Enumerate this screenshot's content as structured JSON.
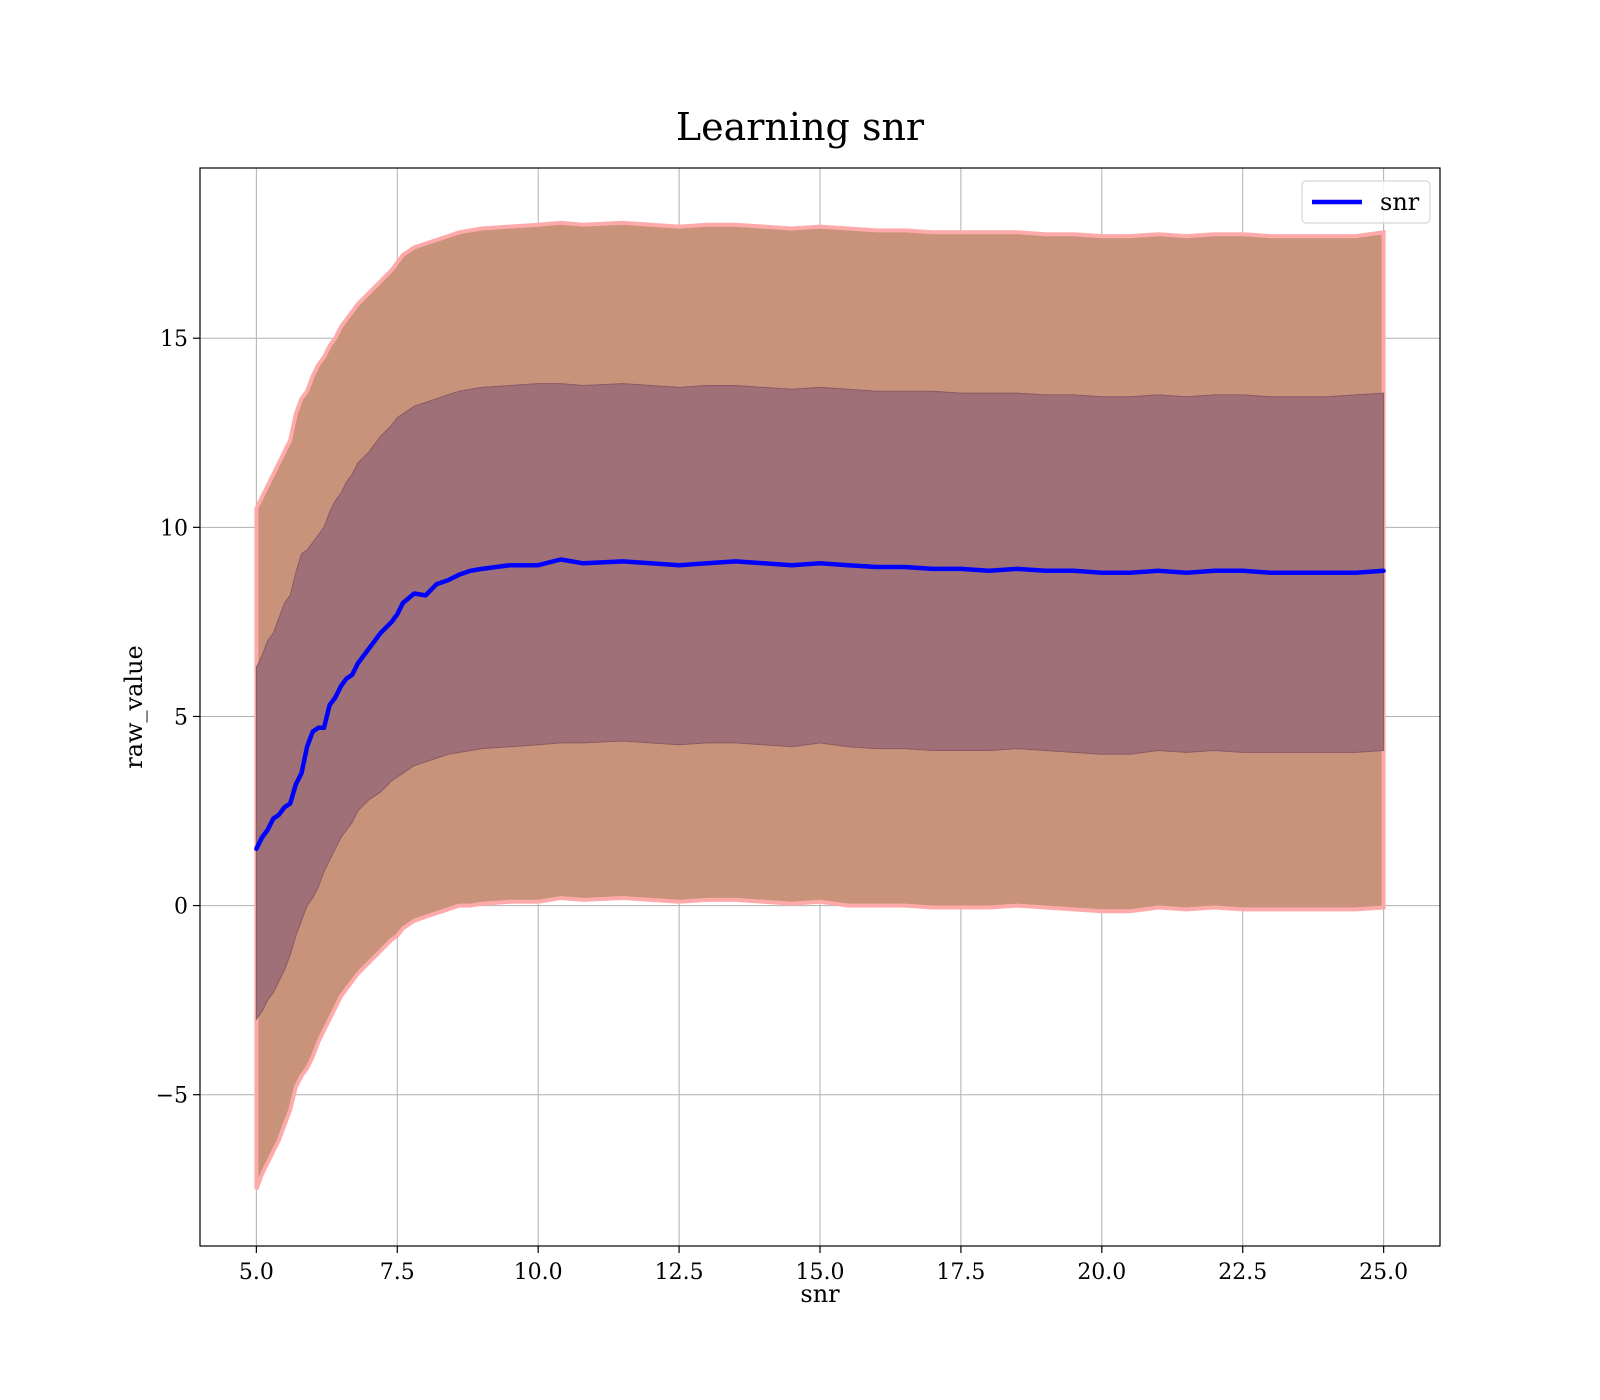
{
  "chart_data": {
    "type": "line",
    "title": "Learning snr",
    "xlabel": "snr",
    "ylabel": "raw_value",
    "xlim": [
      4.0,
      26.0
    ],
    "ylim": [
      -9.0,
      19.5
    ],
    "xticks": [
      5.0,
      7.5,
      10.0,
      12.5,
      15.0,
      17.5,
      20.0,
      22.5,
      25.0
    ],
    "xtick_labels": [
      "5.0",
      "7.5",
      "10.0",
      "12.5",
      "15.0",
      "17.5",
      "20.0",
      "22.5",
      "25.0"
    ],
    "yticks": [
      -5,
      0,
      5,
      10,
      15
    ],
    "ytick_labels": [
      "−5",
      "0",
      "5",
      "10",
      "15"
    ],
    "grid": true,
    "legend": {
      "placement": "top-right",
      "entries": [
        {
          "name": "snr",
          "color": "#0000ff"
        }
      ]
    },
    "colors": {
      "mean_line": "#0000ff",
      "outer_band": "#c8937a",
      "inner_band": "#a07078",
      "outer_edge": "#ffaaaa"
    },
    "series": [
      {
        "name": "snr",
        "x": [
          5.0,
          5.1,
          5.2,
          5.3,
          5.4,
          5.5,
          5.6,
          5.7,
          5.8,
          5.9,
          6.0,
          6.1,
          6.2,
          6.3,
          6.4,
          6.5,
          6.6,
          6.7,
          6.8,
          7.0,
          7.2,
          7.4,
          7.5,
          7.6,
          7.8,
          8.0,
          8.2,
          8.4,
          8.6,
          8.8,
          9.0,
          9.5,
          10.0,
          10.4,
          10.8,
          11.5,
          12.0,
          12.5,
          13.0,
          13.5,
          14.0,
          14.5,
          15.0,
          15.5,
          16.0,
          16.5,
          17.0,
          17.5,
          18.0,
          18.5,
          19.0,
          19.5,
          20.0,
          20.5,
          21.0,
          21.5,
          22.0,
          22.5,
          23.0,
          23.5,
          24.0,
          24.5,
          25.0
        ],
        "mean": [
          1.5,
          1.8,
          2.0,
          2.3,
          2.4,
          2.6,
          2.7,
          3.2,
          3.5,
          4.2,
          4.6,
          4.7,
          4.7,
          5.3,
          5.5,
          5.8,
          6.0,
          6.1,
          6.4,
          6.8,
          7.2,
          7.5,
          7.7,
          8.0,
          8.25,
          8.2,
          8.5,
          8.6,
          8.75,
          8.85,
          8.9,
          9.0,
          9.0,
          9.15,
          9.05,
          9.1,
          9.05,
          9.0,
          9.05,
          9.1,
          9.05,
          9.0,
          9.05,
          9.0,
          8.95,
          8.95,
          8.9,
          8.9,
          8.85,
          8.9,
          8.85,
          8.85,
          8.8,
          8.8,
          8.85,
          8.8,
          8.85,
          8.85,
          8.8,
          8.8,
          8.8,
          8.8,
          8.85
        ],
        "inner_upper": [
          6.3,
          6.6,
          7.0,
          7.2,
          7.6,
          8.0,
          8.2,
          8.8,
          9.3,
          9.4,
          9.6,
          9.8,
          10.0,
          10.4,
          10.7,
          10.9,
          11.2,
          11.4,
          11.7,
          12.0,
          12.4,
          12.7,
          12.9,
          13.0,
          13.2,
          13.3,
          13.4,
          13.5,
          13.6,
          13.65,
          13.7,
          13.75,
          13.8,
          13.8,
          13.75,
          13.8,
          13.75,
          13.7,
          13.75,
          13.75,
          13.7,
          13.65,
          13.7,
          13.65,
          13.6,
          13.6,
          13.6,
          13.55,
          13.55,
          13.55,
          13.5,
          13.5,
          13.45,
          13.45,
          13.5,
          13.45,
          13.5,
          13.5,
          13.45,
          13.45,
          13.45,
          13.5,
          13.55
        ],
        "inner_lower": [
          -3.0,
          -2.8,
          -2.5,
          -2.3,
          -2.0,
          -1.7,
          -1.3,
          -0.8,
          -0.4,
          0.0,
          0.2,
          0.5,
          0.9,
          1.2,
          1.5,
          1.8,
          2.0,
          2.2,
          2.5,
          2.8,
          3.0,
          3.3,
          3.4,
          3.5,
          3.7,
          3.8,
          3.9,
          4.0,
          4.05,
          4.1,
          4.15,
          4.2,
          4.25,
          4.3,
          4.3,
          4.35,
          4.3,
          4.25,
          4.3,
          4.3,
          4.25,
          4.2,
          4.3,
          4.2,
          4.15,
          4.15,
          4.1,
          4.1,
          4.1,
          4.15,
          4.1,
          4.05,
          4.0,
          4.0,
          4.1,
          4.05,
          4.1,
          4.05,
          4.05,
          4.05,
          4.05,
          4.05,
          4.1
        ],
        "outer_upper": [
          10.5,
          10.8,
          11.1,
          11.4,
          11.7,
          12.0,
          12.3,
          13.0,
          13.4,
          13.6,
          14.0,
          14.3,
          14.5,
          14.8,
          15.0,
          15.3,
          15.5,
          15.7,
          15.9,
          16.2,
          16.5,
          16.8,
          17.0,
          17.2,
          17.4,
          17.5,
          17.6,
          17.7,
          17.8,
          17.85,
          17.9,
          17.95,
          18.0,
          18.05,
          18.0,
          18.05,
          18.0,
          17.95,
          18.0,
          18.0,
          17.95,
          17.9,
          17.95,
          17.9,
          17.85,
          17.85,
          17.8,
          17.8,
          17.8,
          17.8,
          17.75,
          17.75,
          17.7,
          17.7,
          17.75,
          17.7,
          17.75,
          17.75,
          17.7,
          17.7,
          17.7,
          17.7,
          17.8
        ],
        "outer_lower": [
          -7.5,
          -7.1,
          -6.8,
          -6.5,
          -6.2,
          -5.8,
          -5.4,
          -4.8,
          -4.5,
          -4.3,
          -4.0,
          -3.6,
          -3.3,
          -3.0,
          -2.7,
          -2.4,
          -2.2,
          -2.0,
          -1.8,
          -1.5,
          -1.2,
          -0.9,
          -0.8,
          -0.6,
          -0.4,
          -0.3,
          -0.2,
          -0.1,
          0.0,
          0.0,
          0.05,
          0.1,
          0.1,
          0.2,
          0.15,
          0.2,
          0.15,
          0.1,
          0.15,
          0.15,
          0.1,
          0.05,
          0.1,
          0.0,
          0.0,
          0.0,
          -0.05,
          -0.05,
          -0.05,
          0.0,
          -0.05,
          -0.1,
          -0.15,
          -0.15,
          -0.05,
          -0.1,
          -0.05,
          -0.1,
          -0.1,
          -0.1,
          -0.1,
          -0.1,
          -0.05
        ]
      }
    ]
  }
}
